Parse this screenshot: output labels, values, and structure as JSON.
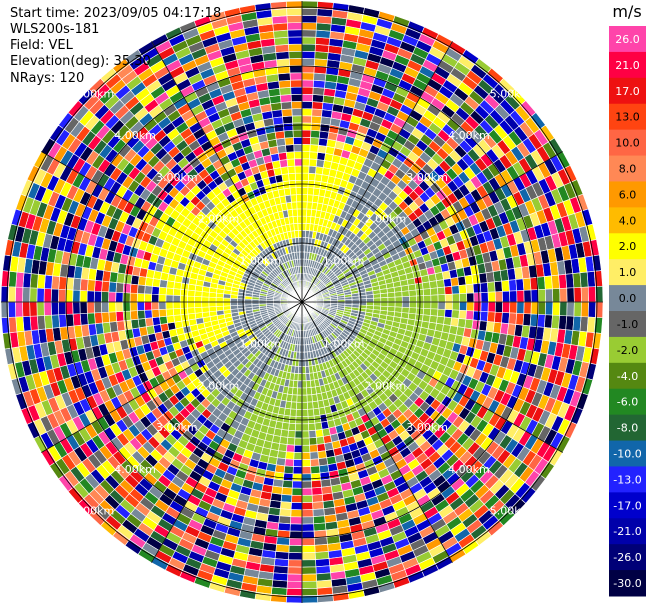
{
  "header": {
    "start_time": "Start time: 2023/09/05 04:17:18",
    "instrument": "WLS200s-181",
    "field": "Field: VEL",
    "elevation": "Elevation(deg): 35.30",
    "nrays": "NRays: 120"
  },
  "chart_data": {
    "type": "heatmap",
    "projection": "polar (PPI scan)",
    "title": "",
    "field": "VEL",
    "units": "m/s",
    "nrays": 120,
    "range_ring_labels": [
      "1.00km",
      "2.00km",
      "3.00km",
      "4.00km",
      "5.00km"
    ],
    "range_label_bearings_deg": [
      45,
      135,
      225,
      315
    ],
    "radial_line_count": 12,
    "colorbar": {
      "label": "m/s",
      "tick_labels": [
        "26.0",
        "21.0",
        "17.0",
        "13.0",
        "10.0",
        "8.0",
        "6.0",
        "4.0",
        "2.0",
        "1.0",
        "0.0",
        "-1.0",
        "-2.0",
        "-4.0",
        "-6.0",
        "-8.0",
        "-10.0",
        "-13.0",
        "-17.0",
        "-21.0",
        "-26.0",
        "-30.0"
      ],
      "colors": [
        "#ff44aa",
        "#ff0044",
        "#ee1111",
        "#ff4411",
        "#ff6644",
        "#ff8855",
        "#ff9900",
        "#ffbb00",
        "#ffff00",
        "#ffee66",
        "#778899",
        "#666666",
        "#99cc33",
        "#558811",
        "#228822",
        "#226633",
        "#1166aa",
        "#2222ff",
        "#0000cc",
        "#0000aa",
        "#000077",
        "#000044"
      ]
    },
    "pattern": {
      "inner_core": "grey (~0 m/s) within ~1 km",
      "positive_lobe": "yellow (~+2 m/s) toward north-west, 1-2 km",
      "negative_lobe": "yellow-green (~-2 m/s) toward south-east, 1-2 km",
      "outer": "noisy/mixed velocities beyond ~2.5 km"
    },
    "legend_placement": "right",
    "grid": true
  }
}
